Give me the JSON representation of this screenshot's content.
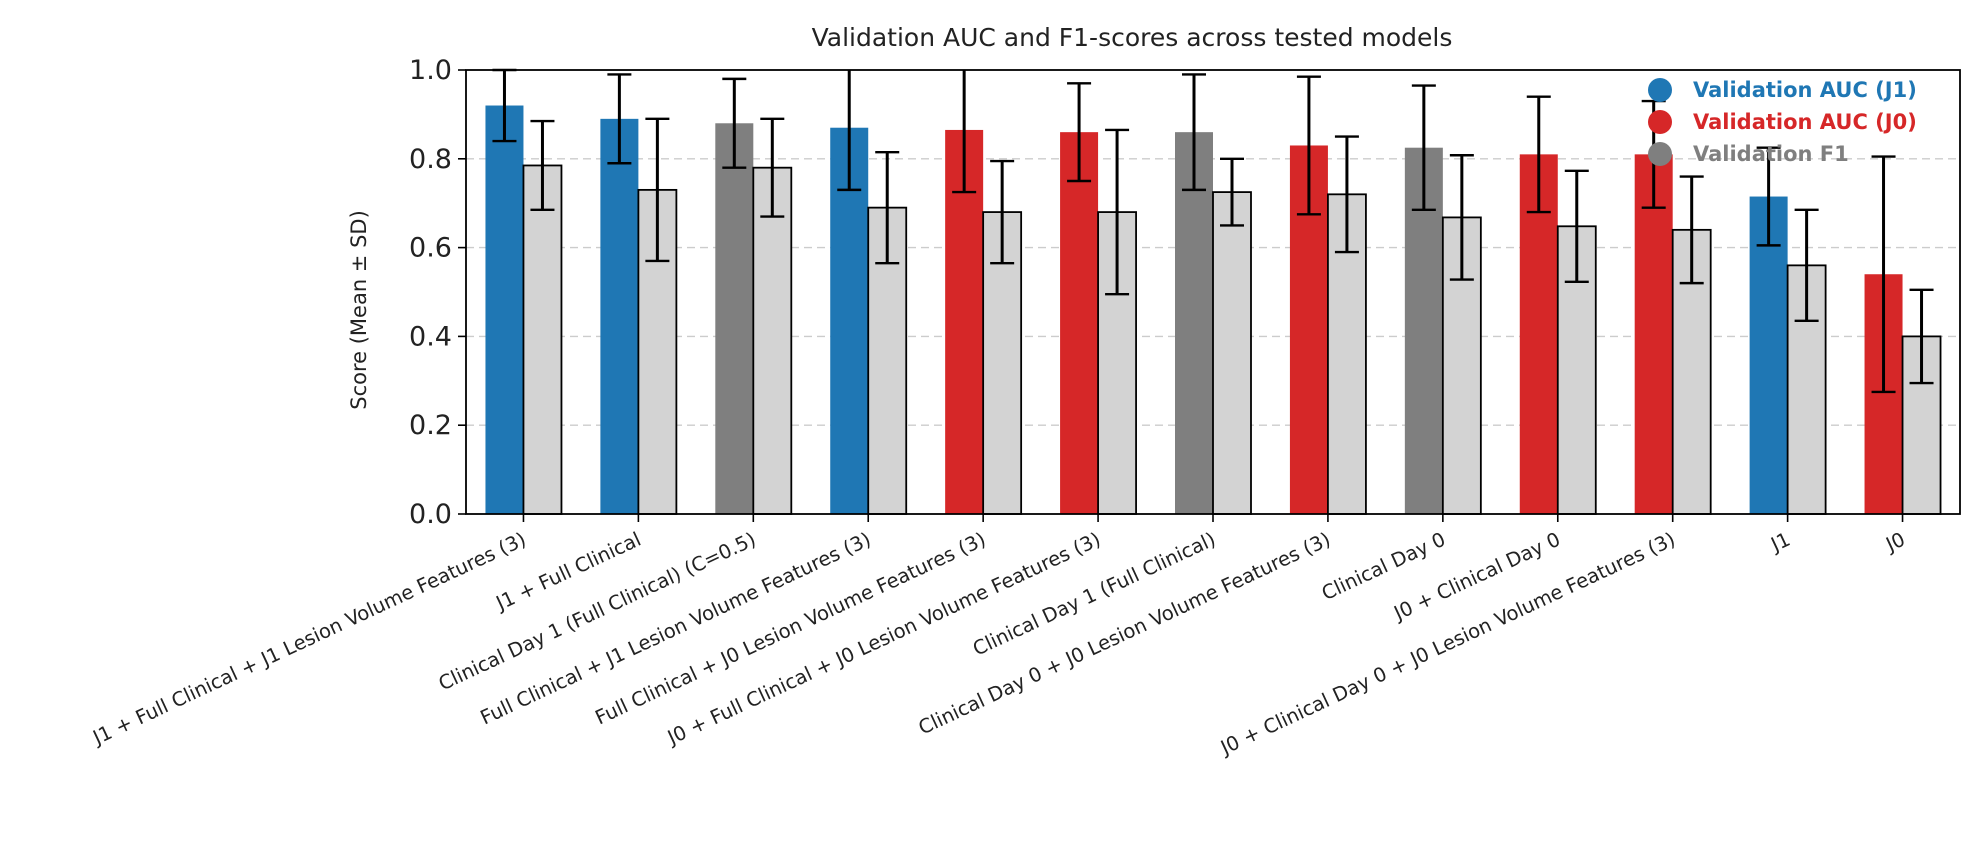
{
  "chart_data": {
    "type": "bar",
    "title": "Validation AUC and F1-scores across tested models",
    "xlabel": "",
    "ylabel": "Score (Mean ± SD)",
    "ylim": [
      0,
      1.0
    ],
    "yticks": [
      0.0,
      0.2,
      0.4,
      0.6,
      0.8,
      1.0
    ],
    "ytick_labels": [
      "0.0",
      "0.2",
      "0.4",
      "0.6",
      "0.8",
      "1.0"
    ],
    "grid": "horizontal dashed",
    "legend_position": "top-right",
    "legend": [
      {
        "label": "Validation AUC (J1)",
        "color": "#1f77b4"
      },
      {
        "label": "Validation AUC (J0)",
        "color": "#d62728"
      },
      {
        "label": "Validation F1",
        "color": "#7f7f7f"
      }
    ],
    "categories": [
      "J1 + Full Clinical + J1 Lesion Volume Features (3)",
      "J1 + Full Clinical",
      "Clinical Day 1 (Full Clinical) (C=0.5)",
      "Full Clinical +  J1 Lesion Volume Features (3)",
      "Full Clinical + J0 Lesion Volume Features (3)",
      "J0 + Full Clinical + J0 Lesion Volume Features (3)",
      "Clinical Day 1 (Full Clinical)",
      "Clinical Day 0 +  J0 Lesion Volume Features (3)",
      "Clinical Day 0",
      "J0 + Clinical Day 0",
      "J0 + Clinical Day 0 + J0 Lesion Volume Features (3)",
      "J1",
      "J0"
    ],
    "category_groups": [
      "J1",
      "J1",
      "none",
      "J1",
      "J0",
      "J0",
      "none",
      "J0",
      "none",
      "J0",
      "J0",
      "J1",
      "J0"
    ],
    "colors": {
      "J1": "#1f77b4",
      "J0": "#d62728",
      "none": "#7f7f7f",
      "f1": "#d3d3d3",
      "edge": "#000000",
      "grid": "#cccccc"
    },
    "series": [
      {
        "name": "Validation AUC",
        "values": [
          0.92,
          0.89,
          0.88,
          0.87,
          0.865,
          0.86,
          0.86,
          0.83,
          0.825,
          0.81,
          0.81,
          0.715,
          0.54
        ],
        "sd": [
          0.08,
          0.1,
          0.1,
          0.14,
          0.14,
          0.11,
          0.13,
          0.155,
          0.14,
          0.13,
          0.12,
          0.11,
          0.265
        ]
      },
      {
        "name": "Validation F1",
        "values": [
          0.785,
          0.73,
          0.78,
          0.69,
          0.68,
          0.68,
          0.725,
          0.72,
          0.668,
          0.648,
          0.64,
          0.56,
          0.4
        ],
        "sd": [
          0.1,
          0.16,
          0.11,
          0.125,
          0.115,
          0.185,
          0.075,
          0.13,
          0.14,
          0.125,
          0.12,
          0.125,
          0.105
        ]
      }
    ]
  }
}
